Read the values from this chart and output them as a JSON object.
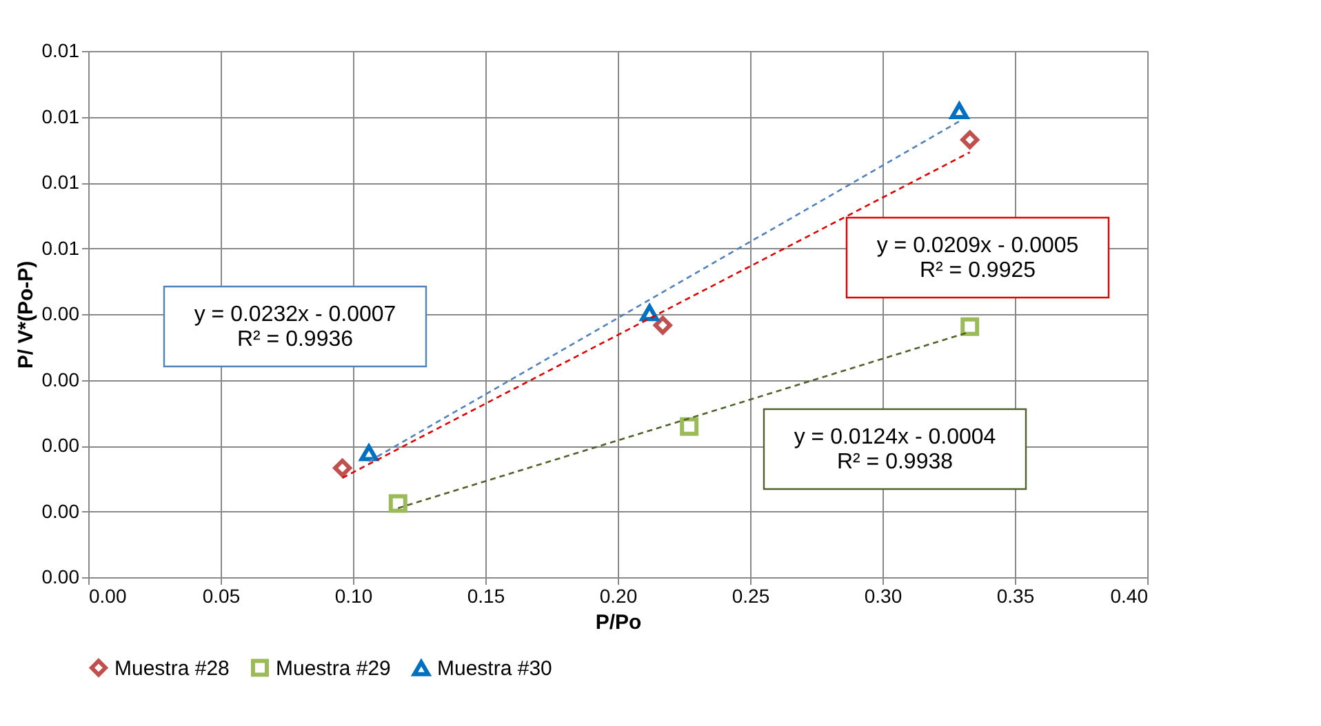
{
  "chart_data": {
    "type": "scatter",
    "xlabel": "P/Po",
    "ylabel": "P/ V*(Po-P)",
    "xlim": [
      0,
      0.4
    ],
    "xticks": [
      {
        "value": 0,
        "label": "0.00"
      },
      {
        "value": 0.05,
        "label": "0.05"
      },
      {
        "value": 0.1,
        "label": "0.10"
      },
      {
        "value": 0.15,
        "label": "0.15"
      },
      {
        "value": 0.2,
        "label": "0.20"
      },
      {
        "value": 0.25,
        "label": "0.25"
      },
      {
        "value": 0.3,
        "label": "0.30"
      },
      {
        "value": 0.35,
        "label": "0.35"
      },
      {
        "value": 0.4,
        "label": "0.40"
      }
    ],
    "ylim": [
      0,
      0.008
    ],
    "yticks": [
      {
        "value": 0,
        "label": "0.00"
      },
      {
        "value": 0.001,
        "label": "0.00"
      },
      {
        "value": 0.002,
        "label": "0.00"
      },
      {
        "value": 0.003,
        "label": "0.00"
      },
      {
        "value": 0.004,
        "label": "0.00"
      },
      {
        "value": 0.005,
        "label": "0.01"
      },
      {
        "value": 0.006,
        "label": "0.01"
      },
      {
        "value": 0.007,
        "label": "0.01"
      },
      {
        "value": 0.008,
        "label": "0.01"
      }
    ],
    "grid": true,
    "legend": "bottom",
    "series": [
      {
        "name": "Muestra #28",
        "color": "#c0504d",
        "marker": "diamond",
        "x": [
          0.096,
          0.217,
          0.333
        ],
        "values": [
          0.00166,
          0.00383,
          0.00665
        ]
      },
      {
        "name": "Muestra #29",
        "color": "#9bbb59",
        "marker": "square",
        "x": [
          0.117,
          0.227,
          0.333
        ],
        "values": [
          0.00112,
          0.00229,
          0.00381
        ]
      },
      {
        "name": "Muestra #30",
        "color": "#0070c0",
        "marker": "triangle",
        "x": [
          0.106,
          0.212,
          0.329
        ],
        "values": [
          0.00189,
          0.00402,
          0.00709
        ]
      },
      {
        "type": "line",
        "line_style": "dashed",
        "color": "#4f81bd",
        "x": [
          0.106,
          0.329
        ],
        "values": [
          0.00176,
          0.00693
        ]
      },
      {
        "type": "line",
        "line_style": "dashed",
        "color": "#e00000",
        "x": [
          0.096,
          0.333
        ],
        "values": [
          0.00151,
          0.00646
        ]
      },
      {
        "type": "line",
        "line_style": "dashed",
        "color": "#4f6228",
        "x": [
          0.117,
          0.333
        ],
        "values": [
          0.00105,
          0.00373
        ]
      }
    ],
    "annotations": [
      "y = 0.0232x - 0.0007\nR² = 0.9936",
      "y = 0.0209x - 0.0005\nR² = 0.9925",
      "y = 0.0124x - 0.0004\nR² = 0.9938"
    ]
  }
}
